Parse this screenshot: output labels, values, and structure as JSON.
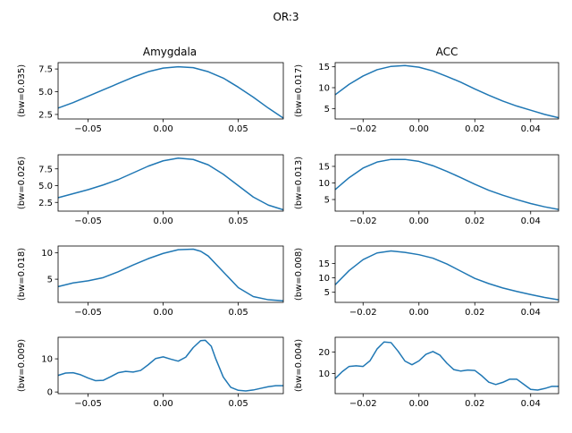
{
  "figure": {
    "suptitle": "OR:3",
    "column_titles": [
      "Amygdala",
      "ACC"
    ]
  },
  "chart_data": [
    {
      "type": "line",
      "column": "Amygdala",
      "ylabel": "(bw=0.035)",
      "xlim": [
        -0.07,
        0.08
      ],
      "ylim": [
        2.0,
        8.2
      ],
      "xticks": [
        -0.05,
        0.0,
        0.05
      ],
      "xtick_labels": [
        "−0.05",
        "0.00",
        "0.05"
      ],
      "yticks": [
        2.5,
        5.0,
        7.5
      ],
      "ytick_labels": [
        "2.5",
        "5.0",
        "7.5"
      ],
      "x": [
        -0.07,
        -0.06,
        -0.05,
        -0.04,
        -0.03,
        -0.02,
        -0.01,
        0.0,
        0.01,
        0.02,
        0.03,
        0.04,
        0.05,
        0.06,
        0.07,
        0.08
      ],
      "y": [
        3.2,
        3.8,
        4.5,
        5.2,
        5.9,
        6.6,
        7.2,
        7.6,
        7.75,
        7.65,
        7.2,
        6.5,
        5.5,
        4.4,
        3.2,
        2.1
      ]
    },
    {
      "type": "line",
      "column": "ACC",
      "ylabel": "(bw=0.017)",
      "xlim": [
        -0.03,
        0.05
      ],
      "ylim": [
        2.5,
        16.0
      ],
      "xticks": [
        -0.02,
        0.0,
        0.02,
        0.04
      ],
      "xtick_labels": [
        "−0.02",
        "0.00",
        "0.02",
        "0.04"
      ],
      "yticks": [
        5,
        10,
        15
      ],
      "ytick_labels": [
        "5",
        "10",
        "15"
      ],
      "x": [
        -0.03,
        -0.025,
        -0.02,
        -0.015,
        -0.01,
        -0.005,
        0.0,
        0.005,
        0.01,
        0.015,
        0.02,
        0.025,
        0.03,
        0.035,
        0.04,
        0.045,
        0.05
      ],
      "y": [
        8.3,
        10.8,
        12.8,
        14.3,
        15.1,
        15.3,
        14.9,
        14.0,
        12.7,
        11.3,
        9.7,
        8.2,
        6.8,
        5.6,
        4.6,
        3.6,
        2.8
      ]
    },
    {
      "type": "line",
      "column": "Amygdala",
      "ylabel": "(bw=0.026)",
      "xlim": [
        -0.07,
        0.08
      ],
      "ylim": [
        1.2,
        9.6
      ],
      "xticks": [
        -0.05,
        0.0,
        0.05
      ],
      "xtick_labels": [
        "−0.05",
        "0.00",
        "0.05"
      ],
      "yticks": [
        2.5,
        5.0,
        7.5
      ],
      "ytick_labels": [
        "2.5",
        "5.0",
        "7.5"
      ],
      "x": [
        -0.07,
        -0.06,
        -0.05,
        -0.04,
        -0.03,
        -0.02,
        -0.01,
        0.0,
        0.01,
        0.02,
        0.03,
        0.04,
        0.05,
        0.06,
        0.07,
        0.08
      ],
      "y": [
        3.2,
        3.8,
        4.4,
        5.1,
        5.9,
        6.9,
        7.9,
        8.7,
        9.1,
        8.9,
        8.1,
        6.7,
        5.0,
        3.3,
        2.1,
        1.4
      ]
    },
    {
      "type": "line",
      "column": "ACC",
      "ylabel": "(bw=0.013)",
      "xlim": [
        -0.03,
        0.05
      ],
      "ylim": [
        1.5,
        18.5
      ],
      "xticks": [
        -0.02,
        0.0,
        0.02,
        0.04
      ],
      "xtick_labels": [
        "−0.02",
        "0.00",
        "0.02",
        "0.04"
      ],
      "yticks": [
        5,
        10,
        15
      ],
      "ytick_labels": [
        "5",
        "10",
        "15"
      ],
      "x": [
        -0.03,
        -0.025,
        -0.02,
        -0.015,
        -0.01,
        -0.005,
        0.0,
        0.005,
        0.01,
        0.015,
        0.02,
        0.025,
        0.03,
        0.035,
        0.04,
        0.045,
        0.05
      ],
      "y": [
        8.0,
        11.6,
        14.5,
        16.3,
        17.1,
        17.1,
        16.5,
        15.2,
        13.5,
        11.6,
        9.6,
        7.8,
        6.3,
        5.0,
        3.8,
        2.8,
        2.0
      ]
    },
    {
      "type": "line",
      "column": "Amygdala",
      "ylabel": "(bw=0.018)",
      "xlim": [
        -0.07,
        0.08
      ],
      "ylim": [
        0.6,
        11.3
      ],
      "xticks": [
        -0.05,
        0.0,
        0.05
      ],
      "xtick_labels": [
        "−0.05",
        "0.00",
        "0.05"
      ],
      "yticks": [
        5,
        10
      ],
      "ytick_labels": [
        "5",
        "10"
      ],
      "x": [
        -0.07,
        -0.06,
        -0.05,
        -0.04,
        -0.03,
        -0.02,
        -0.01,
        0.0,
        0.01,
        0.02,
        0.025,
        0.03,
        0.04,
        0.05,
        0.06,
        0.07,
        0.08
      ],
      "y": [
        3.6,
        4.3,
        4.7,
        5.3,
        6.4,
        7.7,
        8.9,
        9.9,
        10.6,
        10.7,
        10.3,
        9.4,
        6.4,
        3.4,
        1.7,
        1.1,
        0.9
      ]
    },
    {
      "type": "line",
      "column": "ACC",
      "ylabel": "(bw=0.008)",
      "xlim": [
        -0.03,
        0.05
      ],
      "ylim": [
        1.5,
        21.0
      ],
      "xticks": [
        -0.02,
        0.0,
        0.02,
        0.04
      ],
      "xtick_labels": [
        "−0.02",
        "0.00",
        "0.02",
        "0.04"
      ],
      "yticks": [
        5,
        10,
        15
      ],
      "ytick_labels": [
        "5",
        "10",
        "15"
      ],
      "x": [
        -0.03,
        -0.025,
        -0.02,
        -0.015,
        -0.01,
        -0.005,
        0.0,
        0.005,
        0.01,
        0.015,
        0.02,
        0.025,
        0.03,
        0.035,
        0.04,
        0.045,
        0.05
      ],
      "y": [
        7.6,
        12.5,
        16.3,
        18.6,
        19.3,
        18.8,
        18.0,
        16.8,
        14.8,
        12.3,
        9.8,
        8.0,
        6.5,
        5.3,
        4.2,
        3.2,
        2.4
      ]
    },
    {
      "type": "line",
      "column": "Amygdala",
      "ylabel": "(bw=0.009)",
      "xlim": [
        -0.07,
        0.08
      ],
      "ylim": [
        -0.5,
        16.5
      ],
      "xticks": [
        -0.05,
        0.0,
        0.05
      ],
      "xtick_labels": [
        "−0.05",
        "0.00",
        "0.05"
      ],
      "yticks": [
        0,
        10
      ],
      "ytick_labels": [
        "0",
        "10"
      ],
      "x": [
        -0.07,
        -0.065,
        -0.06,
        -0.055,
        -0.05,
        -0.045,
        -0.04,
        -0.035,
        -0.03,
        -0.025,
        -0.02,
        -0.015,
        -0.01,
        -0.005,
        0.0,
        0.005,
        0.01,
        0.015,
        0.02,
        0.025,
        0.028,
        0.032,
        0.035,
        0.04,
        0.045,
        0.05,
        0.055,
        0.06,
        0.065,
        0.07,
        0.075,
        0.08
      ],
      "y": [
        5.0,
        5.7,
        5.8,
        5.2,
        4.2,
        3.4,
        3.5,
        4.6,
        5.8,
        6.2,
        6.0,
        6.5,
        8.2,
        10.1,
        10.6,
        9.9,
        9.3,
        10.5,
        13.4,
        15.5,
        15.6,
        13.8,
        10.0,
        4.5,
        1.4,
        0.5,
        0.3,
        0.6,
        1.1,
        1.6,
        1.9,
        1.9
      ]
    },
    {
      "type": "line",
      "column": "ACC",
      "ylabel": "(bw=0.004)",
      "xlim": [
        -0.03,
        0.05
      ],
      "ylim": [
        0.5,
        27.0
      ],
      "xticks": [
        -0.02,
        0.0,
        0.02,
        0.04
      ],
      "xtick_labels": [
        "−0.02",
        "0.00",
        "0.02",
        "0.04"
      ],
      "yticks": [
        10,
        20
      ],
      "ytick_labels": [
        "10",
        "20"
      ],
      "x": [
        -0.03,
        -0.0275,
        -0.025,
        -0.0225,
        -0.02,
        -0.0175,
        -0.015,
        -0.0125,
        -0.01,
        -0.0075,
        -0.005,
        -0.0025,
        0.0,
        0.0025,
        0.005,
        0.0075,
        0.01,
        0.0125,
        0.015,
        0.0175,
        0.02,
        0.0225,
        0.025,
        0.0275,
        0.03,
        0.0325,
        0.035,
        0.0375,
        0.04,
        0.0425,
        0.045,
        0.0475,
        0.05
      ],
      "y": [
        7.6,
        10.8,
        13.3,
        13.6,
        13.3,
        16.0,
        21.5,
        24.8,
        24.5,
        20.5,
        15.8,
        14.1,
        15.9,
        19.0,
        20.3,
        18.6,
        14.8,
        11.8,
        11.1,
        11.6,
        11.4,
        8.9,
        5.9,
        4.8,
        5.8,
        7.3,
        7.3,
        4.9,
        2.5,
        2.2,
        2.9,
        3.9,
        3.9
      ]
    }
  ]
}
